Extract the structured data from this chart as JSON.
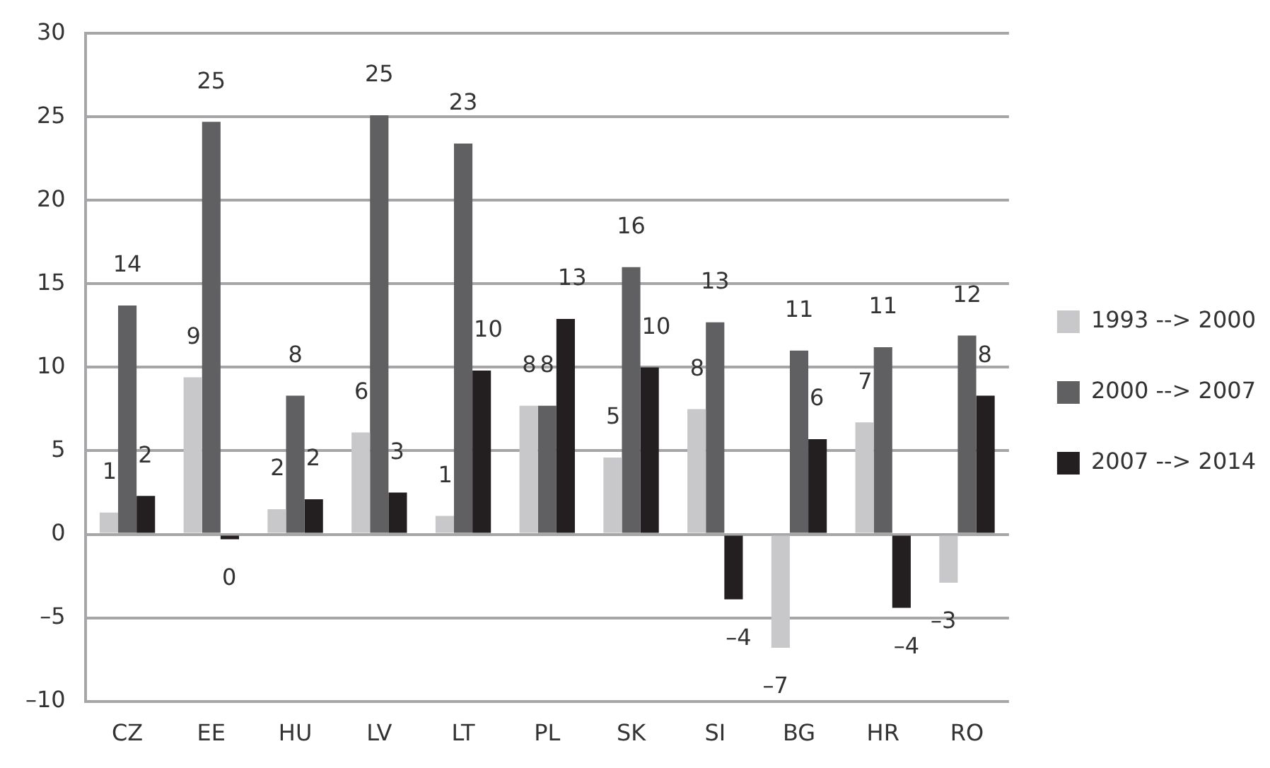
{
  "chart_data": {
    "type": "bar",
    "categories": [
      "CZ",
      "EE",
      "HU",
      "LV",
      "LT",
      "PL",
      "SK",
      "SI",
      "BG",
      "HR",
      "RO"
    ],
    "series": [
      {
        "name": "1993 --> 2000",
        "color": "#c8c8ca",
        "values": [
          1.3,
          9.4,
          1.5,
          6.1,
          1.1,
          7.7,
          4.6,
          7.5,
          -6.8,
          6.7,
          -2.9
        ],
        "value_labels": [
          "1",
          "9",
          "2",
          "6",
          "1",
          "8",
          "5",
          "8",
          "–7",
          "7",
          "–3"
        ]
      },
      {
        "name": "2000 --> 2007",
        "color": "#606062",
        "values": [
          13.7,
          24.7,
          8.3,
          25.1,
          23.4,
          7.7,
          16.0,
          12.7,
          11.0,
          11.2,
          11.9
        ],
        "value_labels": [
          "14",
          "25",
          "8",
          "25",
          "23",
          "8",
          "16",
          "13",
          "11",
          "11",
          "12"
        ]
      },
      {
        "name": "2007 --> 2014",
        "color": "#231f20",
        "values": [
          2.3,
          -0.3,
          2.1,
          2.5,
          9.8,
          12.9,
          10.0,
          -3.9,
          5.7,
          -4.4,
          8.3
        ],
        "value_labels": [
          "2",
          "0",
          "2",
          "3",
          "10",
          "13",
          "10",
          "–4",
          "6",
          "–4",
          "8"
        ]
      }
    ],
    "ylim": [
      -10,
      30
    ],
    "yticks": [
      {
        "value": -10,
        "label": "–10"
      },
      {
        "value": -5,
        "label": "–5"
      },
      0,
      5,
      10,
      15,
      20,
      25,
      30
    ],
    "grid": "y",
    "legend": "right"
  }
}
